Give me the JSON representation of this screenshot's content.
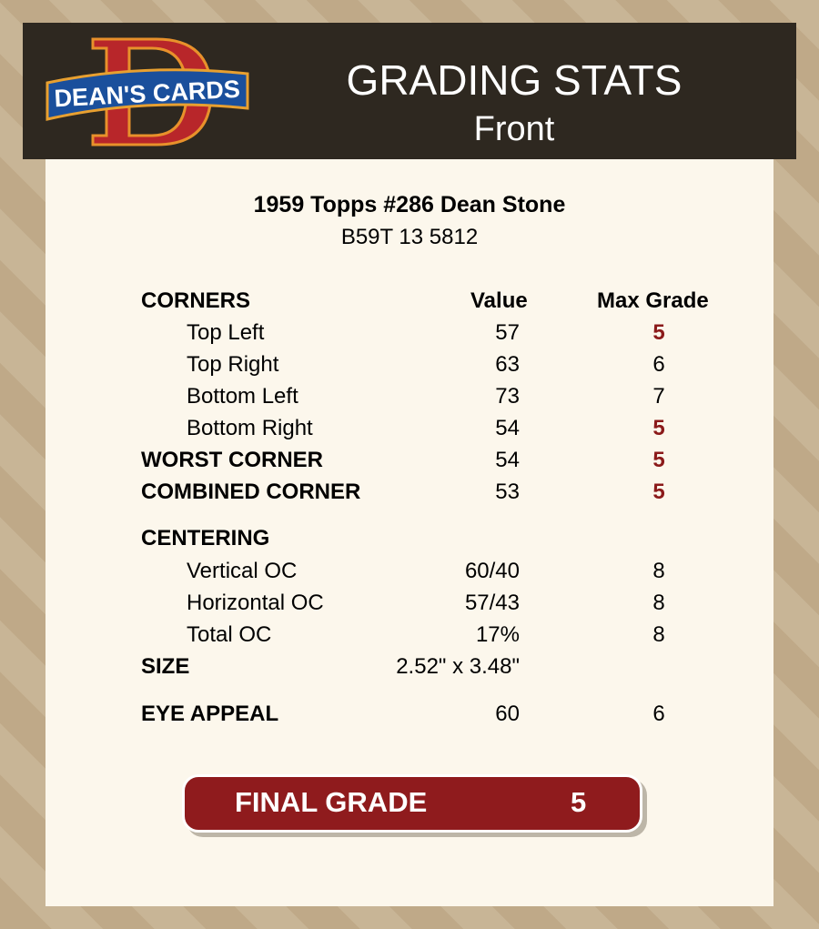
{
  "header": {
    "logo_text": "DEAN'S CARDS",
    "title": "GRADING STATS",
    "subtitle": "Front"
  },
  "card": {
    "title": "1959 Topps #286 Dean Stone",
    "code": "B59T 13 5812"
  },
  "columns": {
    "value": "Value",
    "max_grade": "Max Grade"
  },
  "sections": {
    "corners": "CORNERS",
    "centering": "CENTERING"
  },
  "rows": [
    {
      "label": "Top Left",
      "value": "57",
      "max": "5",
      "bad": true,
      "indent": true,
      "section": "corners"
    },
    {
      "label": "Top Right",
      "value": "63",
      "max": "6",
      "bad": false,
      "indent": true
    },
    {
      "label": "Bottom Left",
      "value": "73",
      "max": "7",
      "bad": false,
      "indent": true
    },
    {
      "label": "Bottom Right",
      "value": "54",
      "max": "5",
      "bad": true,
      "indent": true
    },
    {
      "label": "WORST CORNER",
      "value": "54",
      "max": "5",
      "bad": true,
      "indent": false
    },
    {
      "label": "COMBINED CORNER",
      "value": "53",
      "max": "5",
      "bad": true,
      "indent": false
    },
    {
      "label": "Vertical OC",
      "value": "60/40",
      "max": "8",
      "bad": false,
      "indent": true
    },
    {
      "label": "Horizontal OC",
      "value": "57/43",
      "max": "8",
      "bad": false,
      "indent": true
    },
    {
      "label": "Total OC",
      "value": "17%",
      "max": "8",
      "bad": false,
      "indent": true
    },
    {
      "label": "SIZE",
      "value": "2.52\" x 3.48\"",
      "max": "",
      "bad": false,
      "indent": false
    },
    {
      "label": "EYE APPEAL",
      "value": "60",
      "max": "6",
      "bad": false,
      "indent": false
    }
  ],
  "final": {
    "label": "FINAL GRADE",
    "value": "5"
  },
  "colors": {
    "header_bg": "#2e2820",
    "panel_bg": "#fcf7ec",
    "accent_red": "#8f1b1d",
    "bad_grade": "#8b1a1a"
  }
}
